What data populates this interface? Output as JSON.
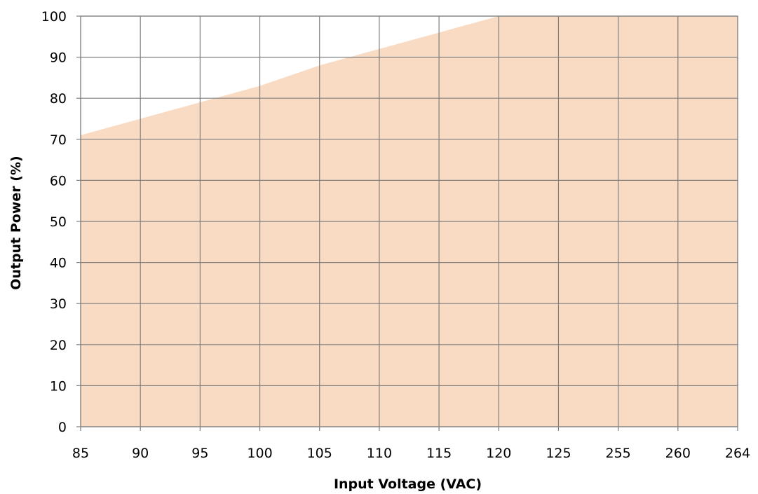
{
  "chart_data": {
    "type": "area",
    "categories": [
      "85",
      "90",
      "95",
      "100",
      "105",
      "110",
      "115",
      "120",
      "125",
      "255",
      "260",
      "264"
    ],
    "series": [
      {
        "values": [
          71,
          75,
          79,
          83,
          88,
          92,
          96,
          100,
          100,
          100,
          100,
          100
        ]
      }
    ],
    "xlabel": "Input Voltage (VAC)",
    "ylabel": "Output Power (%)",
    "yticks": [
      "0",
      "10",
      "20",
      "30",
      "40",
      "50",
      "60",
      "70",
      "80",
      "90",
      "100"
    ],
    "ylim": [
      0,
      100
    ],
    "grid": true,
    "legend": "none",
    "colors": {
      "fill": "#f9dbc3",
      "grid": "#7f7f7f",
      "text": "#000000"
    }
  }
}
